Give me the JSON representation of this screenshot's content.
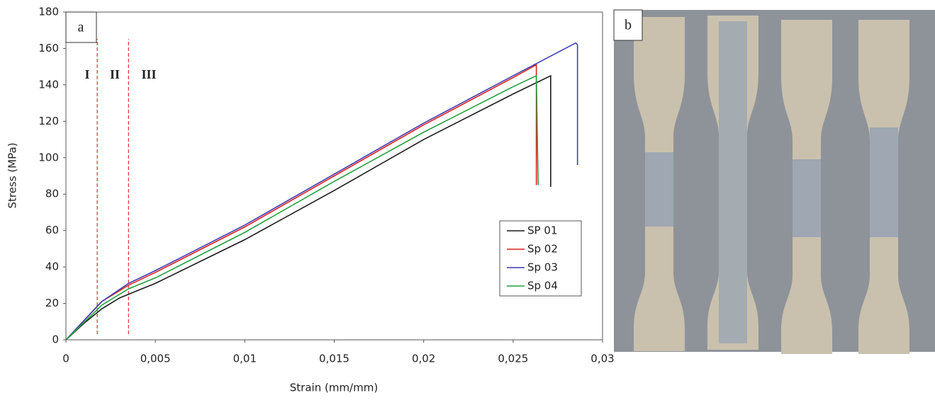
{
  "chart_data": {
    "type": "line",
    "panel_label": "a",
    "x_label": "Strain (mm/mm)",
    "y_label": "Stress (MPa)",
    "xlim": [
      0,
      0.03
    ],
    "ylim": [
      0,
      180
    ],
    "xticks": [
      0,
      {
        "value": 0.005,
        "label": "0,005"
      },
      {
        "value": 0.01,
        "label": "0,01"
      },
      {
        "value": 0.015,
        "label": "0,015"
      },
      {
        "value": 0.02,
        "label": "0,02"
      },
      {
        "value": 0.025,
        "label": "0,025"
      },
      {
        "value": 0.03,
        "label": "0,03"
      }
    ],
    "yticks": [
      0,
      20,
      40,
      60,
      80,
      100,
      120,
      140,
      160,
      180
    ],
    "grid": false,
    "legend_position": "lower right",
    "region_lines": [
      0.00175,
      0.0035
    ],
    "region_labels": [
      "I",
      "II",
      "III"
    ],
    "series": [
      {
        "name": "SP 01",
        "color": "#1a1a1a",
        "x": [
          0,
          0.001,
          0.002,
          0.003,
          0.004,
          0.005,
          0.01,
          0.015,
          0.02,
          0.025,
          0.0271,
          0.0271
        ],
        "values": [
          0,
          9,
          17,
          23,
          27,
          31,
          55,
          82,
          110,
          135,
          145,
          84
        ]
      },
      {
        "name": "Sp 02",
        "color": "#e02020",
        "x": [
          0,
          0.002,
          0.0035,
          0.005,
          0.01,
          0.015,
          0.02,
          0.025,
          0.0263,
          0.0263
        ],
        "values": [
          0,
          21,
          30,
          37,
          62,
          90,
          118,
          144,
          151,
          85
        ]
      },
      {
        "name": "Sp 03",
        "color": "#3c3cb4",
        "x": [
          0,
          0.002,
          0.0035,
          0.005,
          0.01,
          0.015,
          0.02,
          0.025,
          0.0285,
          0.0286,
          0.0286
        ],
        "values": [
          0,
          21,
          31,
          38,
          63,
          91,
          119,
          145,
          163,
          162,
          96
        ]
      },
      {
        "name": "Sp 04",
        "color": "#22a040",
        "x": [
          0,
          0.002,
          0.0035,
          0.005,
          0.01,
          0.015,
          0.02,
          0.025,
          0.0263,
          0.0264
        ],
        "values": [
          0,
          19,
          28,
          34,
          59,
          87,
          114,
          139,
          145,
          85
        ]
      }
    ]
  },
  "photo": {
    "panel_label": "b"
  }
}
